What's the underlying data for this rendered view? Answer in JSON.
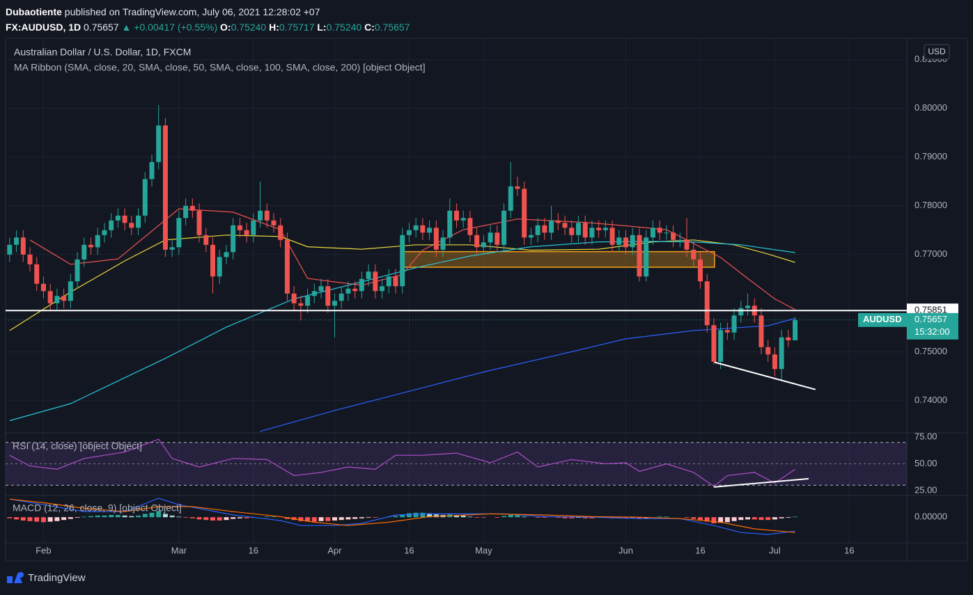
{
  "header": {
    "publisher": "Dubaotiente",
    "published": " published on TradingView.com, July 06, 2021 12:28:02 +07",
    "symbol": "FX:AUDUSD, 1D",
    "price": "0.75657",
    "change": "▲ +0.00417 (+0.55%)",
    "ohlc": [
      {
        "label": "O:",
        "value": "0.75240"
      },
      {
        "label": "H:",
        "value": "0.75717"
      },
      {
        "label": "L:",
        "value": "0.75240"
      },
      {
        "label": "C:",
        "value": "0.75657"
      }
    ]
  },
  "chart_data": [
    {
      "type": "candlestick",
      "title": "Australian Dollar / U.S. Dollar, 1D, FXCM",
      "subtitle": "MA Ribbon (SMA, close, 20, SMA, close, 50, SMA, close, 100, SMA, close, 200) [object Object]",
      "currency": "USD",
      "xlim": [
        -0.6,
        132.5
      ],
      "xticks": [
        {
          "value": 5,
          "label": "Feb"
        },
        {
          "value": 25,
          "label": "Mar"
        },
        {
          "value": 36,
          "label": "16"
        },
        {
          "value": 48,
          "label": "Apr"
        },
        {
          "value": 59,
          "label": "16"
        },
        {
          "value": 70,
          "label": "May"
        },
        {
          "value": 91,
          "label": "Jun"
        },
        {
          "value": 102,
          "label": "16"
        },
        {
          "value": 113,
          "label": "Jul"
        },
        {
          "value": 124,
          "label": "16"
        }
      ],
      "ylim": [
        0.7334,
        0.8144
      ],
      "yticks": [
        {
          "value": 0.74,
          "label": "0.74000"
        },
        {
          "value": 0.75,
          "label": "0.75000"
        },
        {
          "value": 0.77,
          "label": "0.77000"
        },
        {
          "value": 0.78,
          "label": "0.78000"
        },
        {
          "value": 0.79,
          "label": "0.79000"
        },
        {
          "value": 0.8,
          "label": "0.80000"
        },
        {
          "value": 0.81,
          "label": "0.81000"
        }
      ],
      "grid": true,
      "up_color": "#26a69a",
      "down_color": "#ef5350",
      "open": [
        0.77,
        0.772,
        0.7735,
        0.77,
        0.768,
        0.764,
        0.7625,
        0.76,
        0.7615,
        0.7605,
        0.7645,
        0.769,
        0.772,
        0.7715,
        0.774,
        0.775,
        0.777,
        0.778,
        0.7765,
        0.7755,
        0.778,
        0.7855,
        0.789,
        0.7965,
        0.771,
        0.7715,
        0.7775,
        0.78,
        0.779,
        0.774,
        0.772,
        0.7655,
        0.7695,
        0.7705,
        0.776,
        0.775,
        0.774,
        0.777,
        0.779,
        0.777,
        0.776,
        0.773,
        0.762,
        0.76,
        0.7595,
        0.7615,
        0.7625,
        0.7635,
        0.7595,
        0.7605,
        0.762,
        0.763,
        0.7625,
        0.765,
        0.7665,
        0.7625,
        0.7635,
        0.7655,
        0.7635,
        0.774,
        0.775,
        0.776,
        0.7745,
        0.7755,
        0.771,
        0.7735,
        0.779,
        0.777,
        0.7775,
        0.774,
        0.7715,
        0.7725,
        0.7745,
        0.772,
        0.779,
        0.784,
        0.7835,
        0.7735,
        0.774,
        0.776,
        0.7745,
        0.777,
        0.7765,
        0.7755,
        0.774,
        0.7765,
        0.7735,
        0.7755,
        0.775,
        0.7755,
        0.772,
        0.7735,
        0.7715,
        0.774,
        0.7655,
        0.7735,
        0.7755,
        0.7745,
        0.7745,
        0.773,
        0.773,
        0.771,
        0.769,
        0.7645,
        0.7555,
        0.748,
        0.7545,
        0.754,
        0.7575,
        0.759,
        0.7595,
        0.7575,
        0.751,
        0.7495,
        0.7465,
        0.753,
        0.7524
      ],
      "high": [
        0.7735,
        0.775,
        0.775,
        0.7715,
        0.7695,
        0.7655,
        0.764,
        0.763,
        0.763,
        0.766,
        0.7705,
        0.7735,
        0.7735,
        0.7755,
        0.7765,
        0.7785,
        0.7795,
        0.7795,
        0.778,
        0.7795,
        0.787,
        0.7905,
        0.8007,
        0.798,
        0.773,
        0.779,
        0.7815,
        0.7815,
        0.7805,
        0.7755,
        0.7735,
        0.771,
        0.772,
        0.7775,
        0.7775,
        0.7765,
        0.7785,
        0.785,
        0.7805,
        0.7785,
        0.7775,
        0.7745,
        0.7635,
        0.7615,
        0.763,
        0.764,
        0.765,
        0.765,
        0.762,
        0.7635,
        0.7645,
        0.7645,
        0.7665,
        0.768,
        0.768,
        0.765,
        0.767,
        0.767,
        0.7755,
        0.7765,
        0.7775,
        0.7775,
        0.777,
        0.777,
        0.775,
        0.7815,
        0.7805,
        0.779,
        0.779,
        0.7755,
        0.774,
        0.776,
        0.776,
        0.7805,
        0.789,
        0.786,
        0.785,
        0.7755,
        0.7775,
        0.7775,
        0.78,
        0.7785,
        0.778,
        0.777,
        0.778,
        0.778,
        0.777,
        0.777,
        0.777,
        0.777,
        0.775,
        0.775,
        0.7755,
        0.7755,
        0.775,
        0.777,
        0.777,
        0.776,
        0.776,
        0.7745,
        0.7775,
        0.7725,
        0.7705,
        0.766,
        0.757,
        0.756,
        0.756,
        0.759,
        0.7605,
        0.762,
        0.761,
        0.759,
        0.7525,
        0.751,
        0.7545,
        0.7545,
        0.75717
      ],
      "low": [
        0.7685,
        0.7705,
        0.7685,
        0.7665,
        0.7625,
        0.761,
        0.7585,
        0.7585,
        0.759,
        0.759,
        0.763,
        0.7675,
        0.77,
        0.77,
        0.7725,
        0.7735,
        0.7755,
        0.775,
        0.774,
        0.774,
        0.7765,
        0.784,
        0.7875,
        0.7695,
        0.7695,
        0.77,
        0.776,
        0.7775,
        0.7725,
        0.7705,
        0.762,
        0.764,
        0.768,
        0.769,
        0.7735,
        0.7725,
        0.7725,
        0.7755,
        0.7755,
        0.7745,
        0.7715,
        0.7605,
        0.7585,
        0.7565,
        0.758,
        0.76,
        0.761,
        0.758,
        0.753,
        0.759,
        0.7605,
        0.761,
        0.761,
        0.7635,
        0.761,
        0.761,
        0.762,
        0.762,
        0.762,
        0.7725,
        0.7735,
        0.773,
        0.773,
        0.7695,
        0.7695,
        0.772,
        0.7755,
        0.7755,
        0.7725,
        0.77,
        0.77,
        0.771,
        0.7705,
        0.7705,
        0.7775,
        0.782,
        0.772,
        0.772,
        0.7725,
        0.773,
        0.773,
        0.775,
        0.774,
        0.7725,
        0.7725,
        0.772,
        0.772,
        0.7735,
        0.7735,
        0.7705,
        0.7705,
        0.77,
        0.77,
        0.7645,
        0.7645,
        0.772,
        0.773,
        0.773,
        0.7715,
        0.7715,
        0.7695,
        0.7675,
        0.763,
        0.754,
        0.7475,
        0.7465,
        0.7525,
        0.7525,
        0.756,
        0.7575,
        0.756,
        0.7495,
        0.748,
        0.745,
        0.744,
        0.751,
        0.7524
      ],
      "close": [
        0.772,
        0.7735,
        0.77,
        0.768,
        0.764,
        0.7625,
        0.76,
        0.7615,
        0.7605,
        0.7645,
        0.769,
        0.772,
        0.7715,
        0.774,
        0.775,
        0.777,
        0.778,
        0.7765,
        0.7755,
        0.778,
        0.7855,
        0.789,
        0.7965,
        0.771,
        0.7715,
        0.7775,
        0.78,
        0.779,
        0.774,
        0.772,
        0.7655,
        0.7695,
        0.7705,
        0.776,
        0.775,
        0.774,
        0.777,
        0.779,
        0.777,
        0.776,
        0.773,
        0.762,
        0.76,
        0.7595,
        0.7615,
        0.7625,
        0.7635,
        0.7595,
        0.7605,
        0.762,
        0.763,
        0.7625,
        0.765,
        0.7665,
        0.7625,
        0.7635,
        0.7655,
        0.7635,
        0.774,
        0.775,
        0.776,
        0.7745,
        0.7755,
        0.771,
        0.7735,
        0.779,
        0.777,
        0.7775,
        0.774,
        0.7715,
        0.7725,
        0.7745,
        0.772,
        0.779,
        0.784,
        0.7835,
        0.7735,
        0.774,
        0.776,
        0.7745,
        0.777,
        0.7765,
        0.7755,
        0.774,
        0.7765,
        0.7735,
        0.7755,
        0.775,
        0.7755,
        0.772,
        0.7735,
        0.7715,
        0.774,
        0.7655,
        0.7735,
        0.7755,
        0.7745,
        0.7745,
        0.773,
        0.773,
        0.771,
        0.769,
        0.7645,
        0.7555,
        0.748,
        0.7545,
        0.754,
        0.7575,
        0.759,
        0.7595,
        0.7575,
        0.751,
        0.7495,
        0.7465,
        0.753,
        0.7524,
        0.75657
      ],
      "series": [
        {
          "color": "#f05350",
          "x": [
            3,
            9,
            16,
            25,
            33,
            40,
            44,
            52,
            58,
            61,
            67,
            75,
            85,
            91,
            97,
            100,
            105,
            109,
            113,
            116
          ],
          "values": [
            0.773,
            0.768,
            0.7691,
            0.7794,
            0.7787,
            0.7751,
            0.7651,
            0.7637,
            0.7659,
            0.7709,
            0.7751,
            0.7773,
            0.7766,
            0.7759,
            0.7751,
            0.773,
            0.7694,
            0.7651,
            0.7609,
            0.7587
          ]
        },
        {
          "color": "#e8d83a",
          "x": [
            0,
            9,
            17,
            23,
            32,
            40,
            44,
            52,
            60,
            68,
            77,
            87,
            95,
            101,
            107,
            112,
            116
          ],
          "values": [
            0.7544,
            0.7623,
            0.7687,
            0.773,
            0.774,
            0.7737,
            0.7716,
            0.7711,
            0.772,
            0.772,
            0.7709,
            0.7711,
            0.7726,
            0.773,
            0.772,
            0.7701,
            0.7684
          ]
        },
        {
          "color": "#26c6da",
          "x": [
            0,
            9,
            23,
            32,
            42,
            52,
            60,
            68,
            77,
            87,
            95,
            101,
            108,
            116
          ],
          "values": [
            0.7359,
            0.7394,
            0.7487,
            0.7551,
            0.7609,
            0.7644,
            0.7673,
            0.7697,
            0.7716,
            0.7726,
            0.7727,
            0.7726,
            0.772,
            0.7704
          ]
        },
        {
          "color": "#2962ff",
          "x": [
            37,
            48,
            60,
            70,
            81,
            91,
            101,
            112,
            116
          ],
          "values": [
            0.7337,
            0.738,
            0.7423,
            0.7459,
            0.7494,
            0.7527,
            0.7544,
            0.7554,
            0.7569
          ]
        }
      ],
      "hline": {
        "value": 0.75851,
        "color": "#ffffff"
      },
      "zone": {
        "x": [
          57.8,
          104.1
        ],
        "values": [
          0.7706,
          0.7674
        ],
        "color": "#f7a21b"
      },
      "trendline": {
        "x": [
          104.1,
          119
        ],
        "values": [
          0.7479,
          0.7423
        ],
        "color": "#ffffff"
      },
      "last": {
        "symbol": "AUDUSD",
        "countdown": "15:32:00",
        "color": "#26a69a"
      }
    },
    {
      "type": "line",
      "title": "RSI (14, close) [object Object]",
      "ylim": [
        20.45,
        78.9
      ],
      "yticks": [
        {
          "value": 75,
          "label": "75.00"
        },
        {
          "value": 50,
          "label": "50.00"
        },
        {
          "value": 25,
          "label": "25.00"
        }
      ],
      "band": [
        70,
        30
      ],
      "midline": 50,
      "series": [
        {
          "color": "#b04fc6",
          "x": [
            0,
            3,
            7,
            11,
            17,
            22,
            24,
            28,
            33,
            38,
            42,
            46,
            50,
            54,
            57,
            61,
            66,
            71,
            75,
            78,
            83,
            88,
            91,
            93,
            97,
            101,
            104,
            106,
            110,
            113,
            116
          ],
          "values": [
            58,
            48,
            45,
            55,
            61,
            73,
            55,
            47,
            55,
            54,
            39,
            42,
            47,
            45,
            58,
            58,
            60,
            51,
            61,
            47,
            54,
            50,
            51,
            43,
            50,
            42,
            29,
            39,
            42,
            32,
            45
          ]
        }
      ],
      "trendline": {
        "x": [
          104,
          118
        ],
        "values": [
          28.3,
          36.1
        ],
        "color": "#ffffff"
      }
    },
    {
      "type": "macd",
      "title": "MACD (12, 26, close, 9) [object Object]",
      "ylim": [
        -0.0046,
        0.0039
      ],
      "yticks": [
        {
          "value": 0,
          "label": "0.00000"
        }
      ],
      "histogram": [
        -0.0002,
        -0.0004,
        -0.0006,
        -0.0007,
        -0.0008,
        -0.0009,
        -0.0008,
        -0.0007,
        -0.0005,
        -0.0003,
        -0.0001,
        0.0001,
        0.0002,
        0.0003,
        0.0003,
        0.0004,
        0.0004,
        0.0003,
        0.0002,
        0.0003,
        0.0006,
        0.0008,
        0.0011,
        0.0006,
        0.0003,
        0.0001,
        -0.0001,
        -0.0002,
        -0.0004,
        -0.0005,
        -0.0006,
        -0.0006,
        -0.0005,
        -0.0003,
        -0.0002,
        -0.0002,
        -0.0001,
        0,
        0.0001,
        0.0001,
        0,
        -0.0003,
        -0.0005,
        -0.0007,
        -0.0008,
        -0.0008,
        -0.0007,
        -0.0007,
        -0.0006,
        -0.0005,
        -0.0004,
        -0.0003,
        -0.0002,
        -0.0001,
        -0.0001,
        0,
        0.0001,
        0.0002,
        0.0005,
        0.0007,
        0.0008,
        0.0008,
        0.0007,
        0.0005,
        0.0004,
        0.0005,
        0.0004,
        0.0003,
        0.0001,
        -0.0001,
        -0.0001,
        0,
        -0.0001,
        0.0002,
        0.0004,
        0.0004,
        0.0001,
        0,
        -0.0001,
        -0.0001,
        0,
        -0.0001,
        -0.0002,
        -0.0002,
        -0.0001,
        -0.0002,
        -0.0002,
        -0.0001,
        -0.0001,
        -0.0002,
        -0.0002,
        -0.0002,
        -0.0001,
        -0.0003,
        -0.0002,
        0,
        0.0001,
        0.0001,
        0,
        0,
        -0.0001,
        -0.0003,
        -0.0005,
        -0.0008,
        -0.0011,
        -0.001,
        -0.0009,
        -0.0007,
        -0.0005,
        -0.0004,
        -0.0004,
        -0.0005,
        -0.0005,
        -0.0004,
        -0.0002,
        -0.0001,
        0.0001
      ],
      "series": [
        {
          "color": "#2962ff",
          "x": [
            0,
            5,
            11,
            17,
            22,
            25,
            33,
            40,
            43,
            48,
            52,
            57,
            62,
            69,
            73,
            79,
            86,
            93,
            99,
            104,
            108,
            112,
            116
          ],
          "values": [
            0.00325,
            0.00225,
            0.001,
            0.001,
            0.0034,
            0.00225,
            0.0004,
            -0.0006,
            -0.0015,
            -0.0015,
            -0.0011,
            0.0004,
            0.0006,
            0.0006,
            0.0006,
            0.0001,
            0,
            -0.00025,
            -0.00025,
            -0.0015,
            -0.00275,
            -0.0031,
            -0.0025
          ]
        },
        {
          "color": "#ff6d00",
          "x": [
            0,
            5,
            11,
            17,
            22,
            27,
            33,
            40,
            45,
            50,
            56,
            62,
            71,
            79,
            86,
            93,
            99,
            105,
            110,
            116
          ],
          "values": [
            0.00325,
            0.0026,
            0.0016,
            0.001,
            0.0019,
            0.0019,
            0.001,
            0.0001,
            -0.0009,
            -0.0015,
            -0.0009,
            0.0001,
            0.0006,
            0.0004,
            0.0001,
            0,
            -0.00025,
            -0.0009,
            -0.0021,
            -0.00275
          ]
        }
      ]
    }
  ],
  "footer": {
    "brand": "TradingView"
  }
}
